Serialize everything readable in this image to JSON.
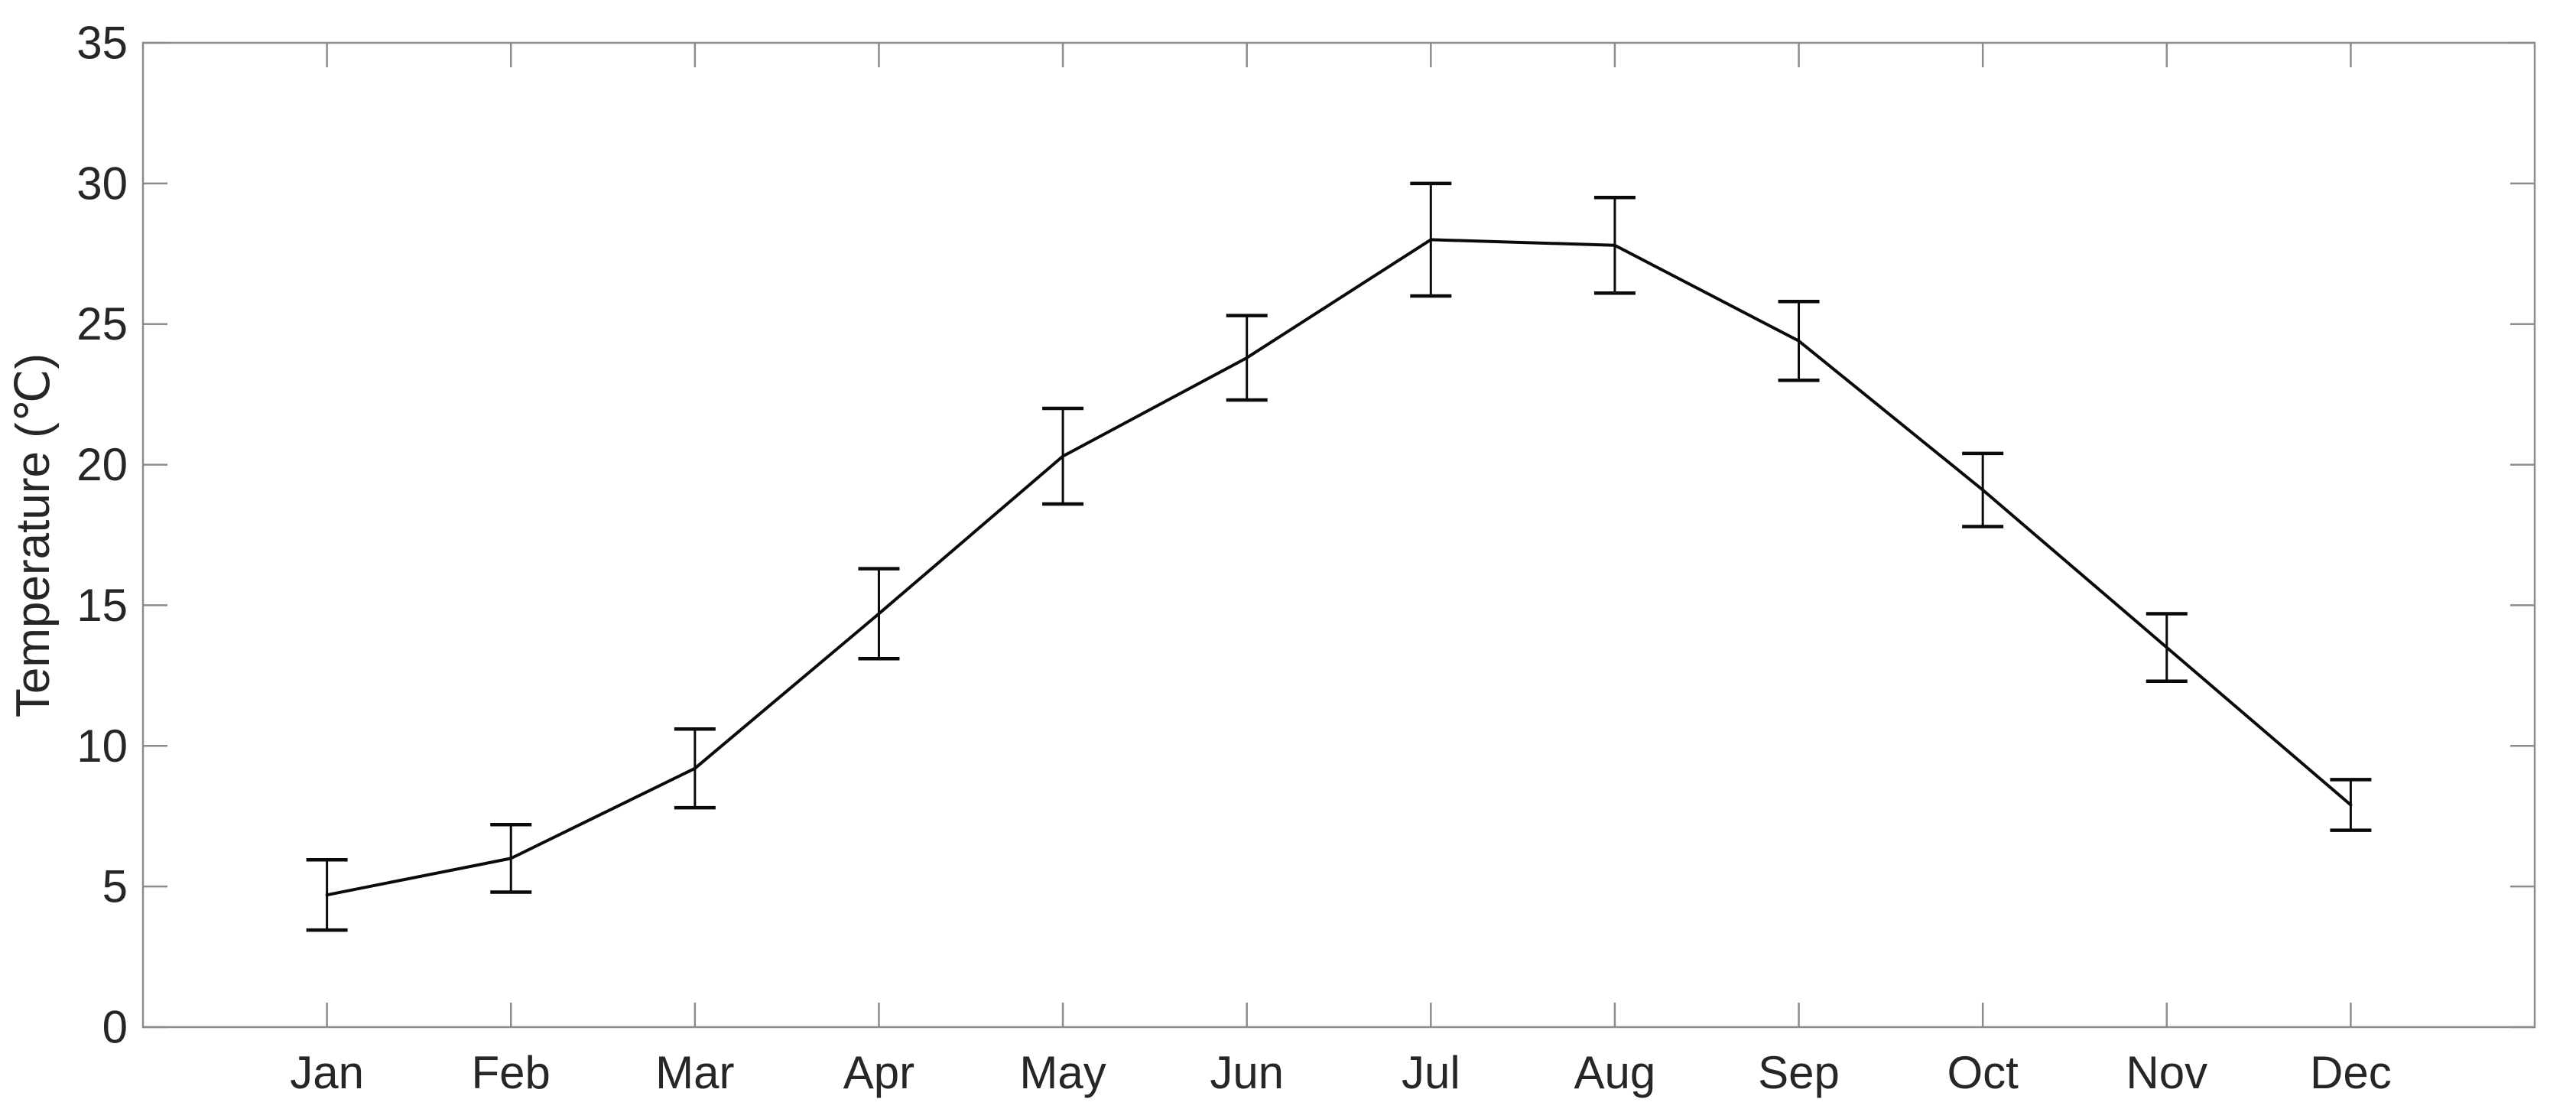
{
  "figure": {
    "background": "#ffffff"
  },
  "chart_data": {
    "type": "line",
    "title": "",
    "xlabel": "",
    "ylabel": "Temperature (℃)",
    "categories": [
      "Jan",
      "Feb",
      "Mar",
      "Apr",
      "May",
      "Jun",
      "Jul",
      "Aug",
      "Sep",
      "Oct",
      "Nov",
      "Dec"
    ],
    "series": [
      {
        "values": [
          4.7,
          6.0,
          9.2,
          14.7,
          20.3,
          23.8,
          28.0,
          27.8,
          24.4,
          19.1,
          13.5,
          7.9
        ],
        "errors": [
          1.25,
          1.2,
          1.4,
          1.6,
          1.7,
          1.5,
          2.0,
          1.7,
          1.4,
          1.3,
          1.2,
          0.9
        ]
      }
    ],
    "ylim": [
      0,
      35
    ],
    "yticks": [
      0,
      5,
      10,
      15,
      20,
      25,
      30,
      35
    ],
    "xlim_units": [
      0,
      13
    ],
    "grid": false,
    "legend": false,
    "box": true,
    "tick_direction": "in",
    "line_color": "#0a0a0a",
    "errorbar_color": "#0a0a0a",
    "axis_color": "#8c8c8c",
    "text_color": "#262626"
  }
}
